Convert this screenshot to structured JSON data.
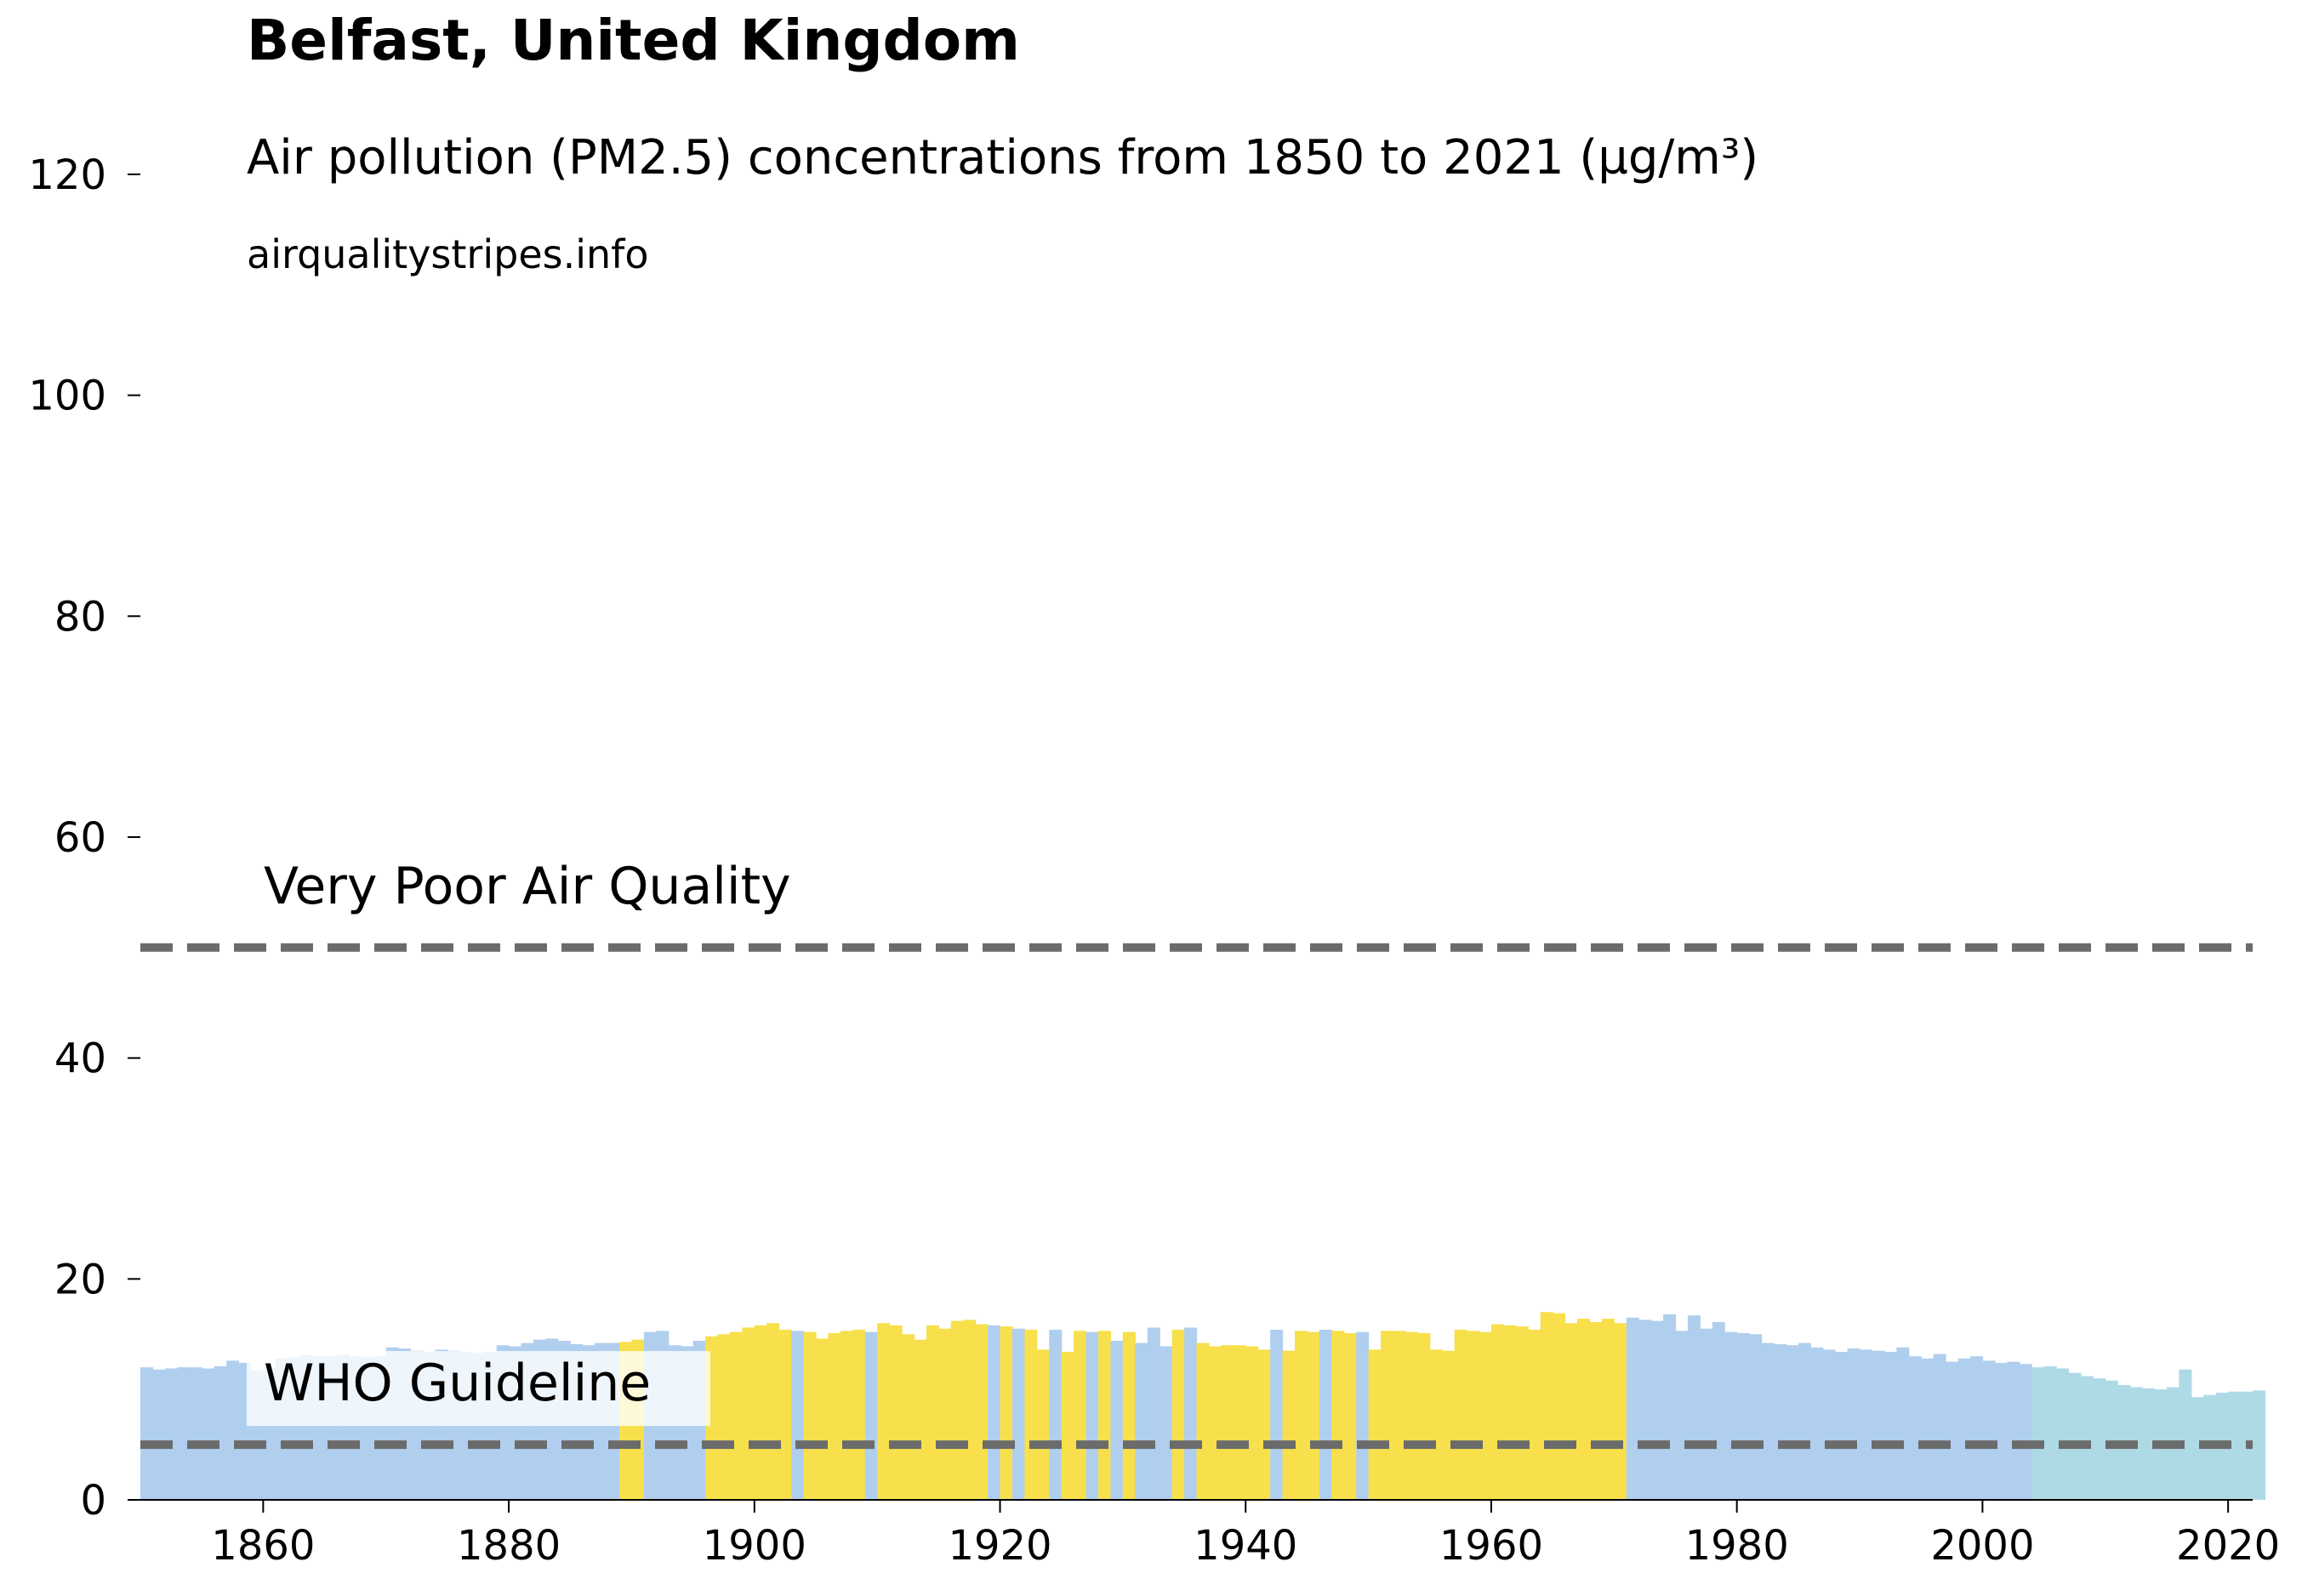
{
  "title": "Belfast, United Kingdom",
  "subtitle": "Air pollution (PM2.5) concentrations from 1850 to 2021 (µg/m³)",
  "source": "airqualitystripes.info",
  "colors": {
    "low": "#b0cfee",
    "moderate": "#f7e04b",
    "recent": "#aedae6",
    "reference_line": "#6b6b6b",
    "axis": "#000000"
  },
  "chart_data": {
    "type": "bar",
    "x_start": 1850,
    "x_end": 2021,
    "xlim": [
      1850,
      2022
    ],
    "ylim": [
      0,
      125
    ],
    "xticks": [
      1860,
      1880,
      1900,
      1920,
      1940,
      1960,
      1980,
      2000,
      2020
    ],
    "yticks": [
      0,
      20,
      40,
      60,
      80,
      100,
      120
    ],
    "grid": false,
    "values": [
      12.0,
      11.8,
      11.9,
      12.0,
      12.0,
      11.9,
      12.1,
      12.6,
      12.4,
      11.7,
      12.0,
      12.8,
      12.9,
      13.1,
      13.0,
      13.0,
      13.2,
      13.0,
      12.9,
      13.0,
      13.8,
      13.7,
      13.5,
      13.4,
      13.6,
      13.5,
      13.4,
      13.3,
      13.4,
      14.0,
      13.9,
      14.2,
      14.5,
      14.6,
      14.4,
      14.1,
      14.0,
      14.2,
      14.2,
      14.3,
      14.5,
      15.2,
      15.3,
      14.0,
      13.9,
      14.4,
      14.8,
      15.0,
      15.2,
      15.6,
      15.8,
      16.0,
      15.4,
      15.3,
      15.2,
      14.6,
      15.1,
      15.3,
      15.4,
      15.2,
      16.0,
      15.8,
      15.0,
      14.5,
      15.8,
      15.5,
      16.2,
      16.3,
      15.9,
      15.8,
      15.7,
      15.5,
      15.4,
      13.6,
      15.4,
      13.4,
      15.3,
      15.2,
      15.3,
      14.4,
      15.2,
      14.2,
      15.6,
      13.9,
      15.4,
      15.6,
      14.2,
      13.9,
      14.0,
      14.0,
      13.9,
      13.6,
      15.4,
      13.5,
      15.3,
      15.2,
      15.4,
      15.3,
      15.1,
      15.2,
      13.6,
      15.3,
      15.3,
      15.2,
      15.1,
      13.6,
      13.5,
      15.4,
      15.3,
      15.2,
      15.9,
      15.8,
      15.7,
      15.4,
      17.0,
      16.9,
      16.0,
      16.4,
      16.1,
      16.4,
      16.0,
      16.5,
      16.3,
      16.2,
      16.8,
      15.3,
      16.7,
      15.5,
      16.1,
      15.2,
      15.1,
      15.0,
      14.2,
      14.1,
      14.0,
      14.2,
      13.8,
      13.6,
      13.4,
      13.7,
      13.6,
      13.5,
      13.4,
      13.8,
      13.0,
      12.8,
      13.2,
      12.5,
      12.8,
      13.0,
      12.6,
      12.4,
      12.5,
      12.3,
      12.0,
      12.1,
      11.9,
      11.5,
      11.2,
      11.0,
      10.8,
      10.4,
      10.2,
      10.1,
      10.0,
      10.2,
      11.8,
      9.3,
      9.5,
      9.7,
      9.8,
      9.8,
      9.9
    ],
    "categories_by_index": {
      "moderate_years": [
        1889,
        1890,
        1896,
        1897,
        1898,
        1899,
        1900,
        1901,
        1902,
        1904,
        1905,
        1906,
        1907,
        1908,
        1910,
        1911,
        1912,
        1913,
        1914,
        1915,
        1916,
        1917,
        1918,
        1920,
        1922,
        1923,
        1925,
        1926,
        1928,
        1930,
        1934,
        1936,
        1937,
        1938,
        1939,
        1940,
        1941,
        1943,
        1944,
        1945,
        1947,
        1948,
        1950,
        1951,
        1952,
        1953,
        1954,
        1955,
        1956,
        1957,
        1958,
        1959,
        1960,
        1961,
        1962,
        1963,
        1964,
        1965,
        1966,
        1967,
        1968,
        1969,
        1970
      ],
      "recent_years_start": 2004
    },
    "reference_lines": [
      {
        "label": "Very Poor Air Quality",
        "value": 50
      },
      {
        "label": "WHO Guideline",
        "value": 5
      }
    ]
  }
}
